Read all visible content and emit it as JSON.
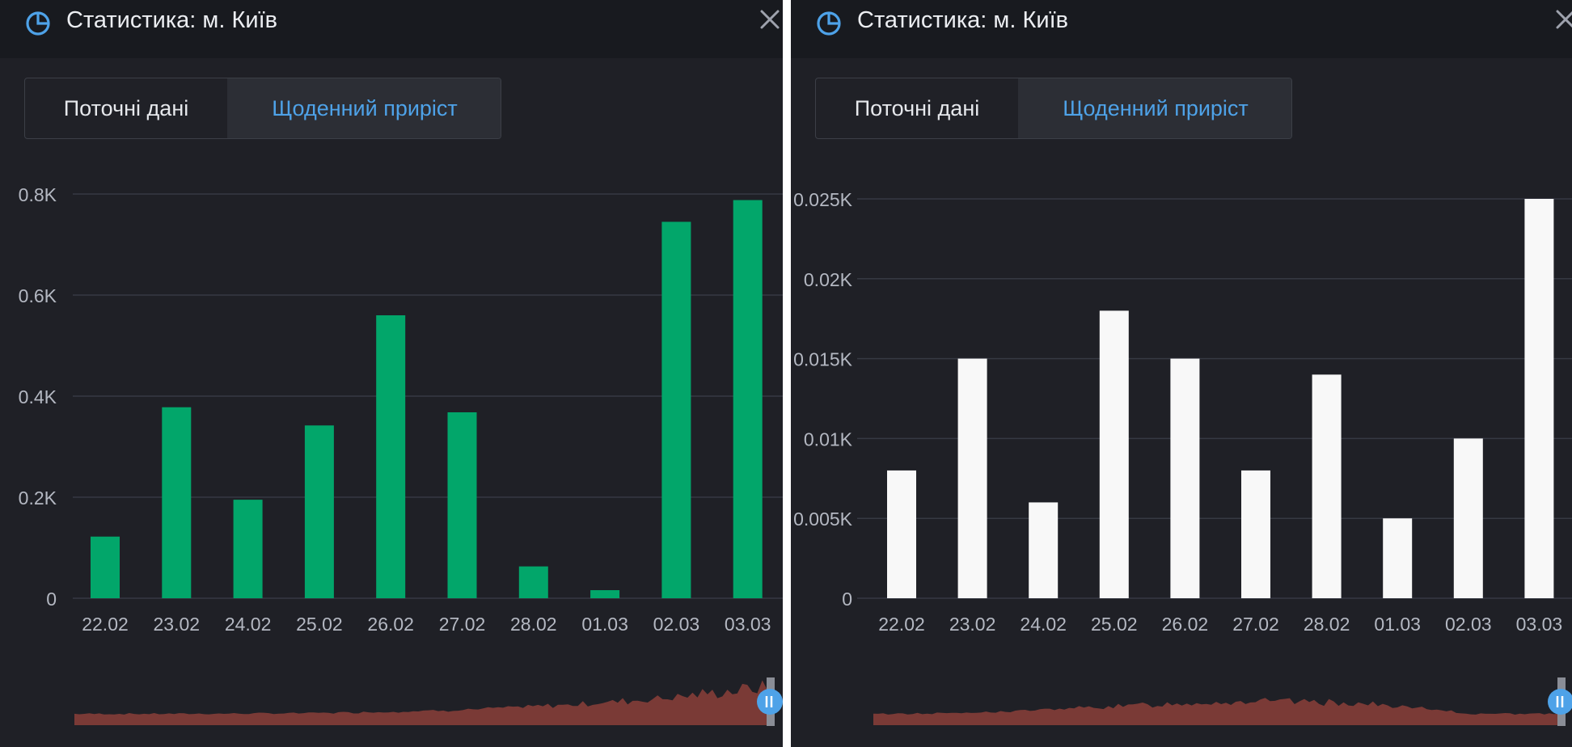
{
  "colors": {
    "panel_bg": "#1f2026",
    "header_bg": "#181a1f",
    "accent_blue": "#4ea2e8",
    "bar_green": "#02a66a",
    "bar_white": "#f8f8f8",
    "navigator_fill": "#7a3a36",
    "grid": "#363943",
    "tick_text": "#b4b8c2"
  },
  "panels": [
    {
      "header": {
        "icon": "pie-chart-icon",
        "title": "Статистика: м. Київ",
        "close_icon": "close-icon"
      },
      "tabs": [
        {
          "label": "Поточні дані",
          "active": false
        },
        {
          "label": "Щоденний приріст",
          "active": true
        }
      ],
      "chart_data": {
        "type": "bar",
        "bar_color": "#02a66a",
        "categories": [
          "22.02",
          "23.02",
          "24.02",
          "25.02",
          "26.02",
          "27.02",
          "28.02",
          "01.03",
          "02.03",
          "03.03"
        ],
        "values": [
          122,
          378,
          195,
          342,
          560,
          368,
          63,
          16,
          745,
          788
        ],
        "ylim": [
          0,
          800
        ],
        "yticks": [
          0,
          200,
          400,
          600,
          800
        ],
        "ytick_labels": [
          "0",
          "0.2K",
          "0.4K",
          "0.6K",
          "0.8K"
        ],
        "grid": true
      }
    },
    {
      "header": {
        "icon": "pie-chart-icon",
        "title": "Статистика: м. Київ",
        "close_icon": "close-icon"
      },
      "tabs": [
        {
          "label": "Поточні дані",
          "active": false
        },
        {
          "label": "Щоденний приріст",
          "active": true
        }
      ],
      "chart_data": {
        "type": "bar",
        "bar_color": "#f8f8f8",
        "categories": [
          "22.02",
          "23.02",
          "24.02",
          "25.02",
          "26.02",
          "27.02",
          "28.02",
          "01.03",
          "02.03",
          "03.03"
        ],
        "values": [
          8,
          15,
          6,
          18,
          15,
          8,
          14,
          5,
          10,
          25
        ],
        "ylim": [
          0,
          25
        ],
        "yticks": [
          0,
          5,
          10,
          15,
          20,
          25
        ],
        "ytick_labels": [
          "0",
          "0.005K",
          "0.01K",
          "0.015K",
          "0.02K",
          "0.025K"
        ],
        "grid": true
      }
    }
  ]
}
